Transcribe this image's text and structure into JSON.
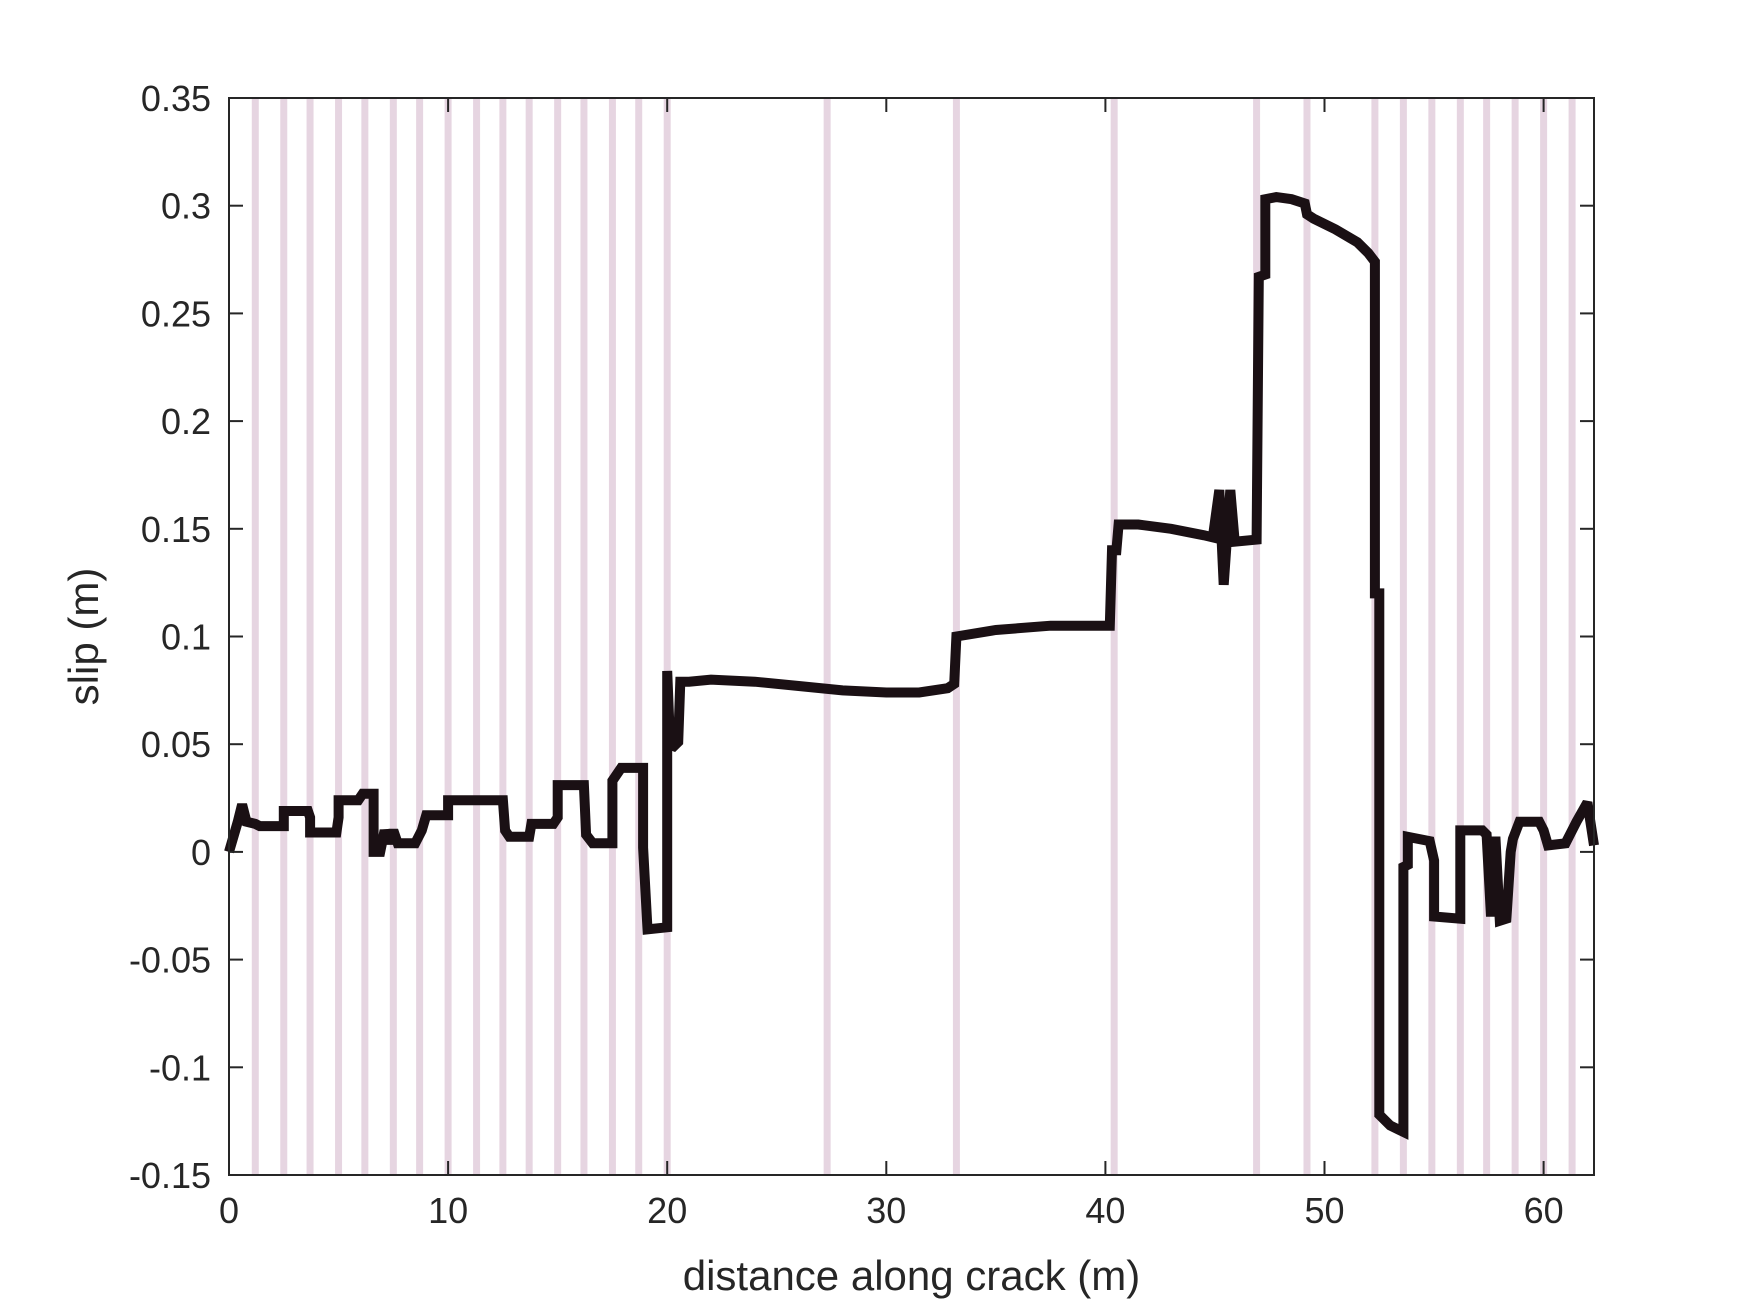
{
  "chart_data": {
    "type": "line",
    "title": "",
    "xlabel": "distance along crack (m)",
    "ylabel": "slip (m)",
    "xlim": [
      0,
      62.3
    ],
    "ylim": [
      -0.15,
      0.35
    ],
    "xticks": [
      0,
      10,
      20,
      30,
      40,
      50,
      60
    ],
    "xtick_labels": [
      "0",
      "10",
      "20",
      "30",
      "40",
      "50",
      "60"
    ],
    "yticks": [
      -0.15,
      -0.1,
      -0.05,
      0,
      0.05,
      0.1,
      0.15,
      0.2,
      0.25,
      0.3,
      0.35
    ],
    "ytick_labels": [
      "-0.15",
      "-0.1",
      "-0.05",
      "0",
      "0.05",
      "0.1",
      "0.15",
      "0.2",
      "0.25",
      "0.3",
      "0.35"
    ],
    "grid": false,
    "colors": {
      "line": "#1a1014",
      "band": "#e6d5e1",
      "axis": "#262626"
    },
    "vertical_bands_x": [
      1.2,
      2.5,
      3.7,
      5.0,
      6.2,
      7.5,
      8.7,
      10.0,
      11.3,
      12.5,
      13.7,
      15.0,
      16.2,
      17.5,
      18.7,
      20.0,
      27.3,
      33.2,
      40.4,
      46.9,
      49.2,
      52.3,
      53.6,
      54.9,
      56.2,
      57.4,
      58.7,
      60.0,
      61.3
    ],
    "series": [
      {
        "values": [
          [
            0,
            0
          ],
          [
            0.4,
            0.014
          ],
          [
            0.6,
            0.022
          ],
          [
            0.8,
            0.014
          ],
          [
            1.2,
            0.013
          ],
          [
            1.4,
            0.012
          ],
          [
            2.5,
            0.012
          ],
          [
            2.5,
            0.019
          ],
          [
            3.6,
            0.019
          ],
          [
            3.7,
            0.016
          ],
          [
            3.7,
            0.009
          ],
          [
            4.9,
            0.009
          ],
          [
            5.0,
            0.016
          ],
          [
            5.0,
            0.024
          ],
          [
            5.9,
            0.024
          ],
          [
            6.1,
            0.027
          ],
          [
            6.6,
            0.027
          ],
          [
            6.6,
            0.0
          ],
          [
            6.9,
            0.0
          ],
          [
            7.1,
            0.01
          ],
          [
            7.3,
            0.004
          ],
          [
            7.5,
            0.01
          ],
          [
            7.7,
            0.004
          ],
          [
            8.5,
            0.004
          ],
          [
            8.8,
            0.01
          ],
          [
            9.0,
            0.017
          ],
          [
            10.0,
            0.017
          ],
          [
            10.0,
            0.024
          ],
          [
            12.5,
            0.024
          ],
          [
            12.6,
            0.01
          ],
          [
            12.8,
            0.007
          ],
          [
            13.7,
            0.007
          ],
          [
            13.8,
            0.013
          ],
          [
            14.8,
            0.013
          ],
          [
            15.0,
            0.016
          ],
          [
            15.0,
            0.031
          ],
          [
            16.2,
            0.031
          ],
          [
            16.3,
            0.008
          ],
          [
            16.6,
            0.004
          ],
          [
            17.5,
            0.004
          ],
          [
            17.5,
            0.033
          ],
          [
            17.9,
            0.039
          ],
          [
            18.9,
            0.039
          ],
          [
            18.9,
            0.002
          ],
          [
            19.1,
            -0.036
          ],
          [
            20.0,
            -0.035
          ],
          [
            20.0,
            0.084
          ],
          [
            20.1,
            0.058
          ],
          [
            20.2,
            0.048
          ],
          [
            20.5,
            0.051
          ],
          [
            20.6,
            0.079
          ],
          [
            21.0,
            0.079
          ],
          [
            22.0,
            0.08
          ],
          [
            24.0,
            0.079
          ],
          [
            26.0,
            0.077
          ],
          [
            28.0,
            0.075
          ],
          [
            30.0,
            0.074
          ],
          [
            31.5,
            0.074
          ],
          [
            32.8,
            0.076
          ],
          [
            33.1,
            0.078
          ],
          [
            33.2,
            0.1
          ],
          [
            35.0,
            0.103
          ],
          [
            37.5,
            0.105
          ],
          [
            40.2,
            0.105
          ],
          [
            40.3,
            0.14
          ],
          [
            40.5,
            0.14
          ],
          [
            40.6,
            0.152
          ],
          [
            41.5,
            0.152
          ],
          [
            43.0,
            0.15
          ],
          [
            44.5,
            0.147
          ],
          [
            44.9,
            0.146
          ],
          [
            45.2,
            0.168
          ],
          [
            45.4,
            0.124
          ],
          [
            45.7,
            0.168
          ],
          [
            45.9,
            0.144
          ],
          [
            46.9,
            0.145
          ],
          [
            47.0,
            0.267
          ],
          [
            47.3,
            0.268
          ],
          [
            47.3,
            0.303
          ],
          [
            47.8,
            0.304
          ],
          [
            48.5,
            0.303
          ],
          [
            49.1,
            0.301
          ],
          [
            49.2,
            0.296
          ],
          [
            49.5,
            0.294
          ],
          [
            50.5,
            0.289
          ],
          [
            51.5,
            0.283
          ],
          [
            52.0,
            0.278
          ],
          [
            52.3,
            0.274
          ],
          [
            52.3,
            0.12
          ],
          [
            52.5,
            0.12
          ],
          [
            52.5,
            -0.122
          ],
          [
            53.0,
            -0.127
          ],
          [
            53.6,
            -0.13
          ],
          [
            53.6,
            -0.007
          ],
          [
            53.8,
            -0.006
          ],
          [
            53.8,
            0.007
          ],
          [
            54.8,
            0.005
          ],
          [
            55.0,
            -0.004
          ],
          [
            55.0,
            -0.03
          ],
          [
            56.2,
            -0.031
          ],
          [
            56.2,
            0.01
          ],
          [
            57.2,
            0.01
          ],
          [
            57.4,
            0.008
          ],
          [
            57.6,
            -0.03
          ],
          [
            57.8,
            0.007
          ],
          [
            58.0,
            -0.032
          ],
          [
            58.3,
            -0.031
          ],
          [
            58.5,
            0.0
          ],
          [
            58.6,
            0.006
          ],
          [
            58.9,
            0.014
          ],
          [
            59.8,
            0.014
          ],
          [
            60.0,
            0.01
          ],
          [
            60.2,
            0.003
          ],
          [
            61.0,
            0.004
          ],
          [
            61.3,
            0.01
          ],
          [
            61.5,
            0.014
          ],
          [
            62.0,
            0.023
          ],
          [
            62.3,
            0.003
          ]
        ]
      }
    ]
  }
}
